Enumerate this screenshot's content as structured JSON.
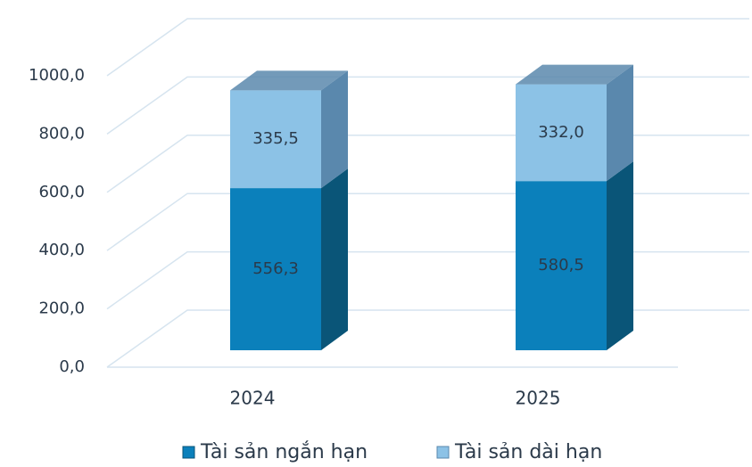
{
  "chart_data": {
    "type": "bar3d_stacked",
    "categories": [
      "2024",
      "2025"
    ],
    "series": [
      {
        "name": "Tài sản ngắn hạn",
        "color": "#0b80bb",
        "side": "#0a5578",
        "values": [
          556.3,
          580.5
        ],
        "value_labels": [
          "556,3",
          "580,5"
        ]
      },
      {
        "name": "Tài sản dài hạn",
        "color": "#8cc2e6",
        "side": "#5a88ad",
        "values": [
          335.5,
          332.0
        ],
        "value_labels": [
          "335,5",
          "332,0"
        ]
      }
    ],
    "ylim": [
      0,
      1000
    ],
    "yticks": [
      {
        "value": 0,
        "label": "0,0"
      },
      {
        "value": 200,
        "label": "200,0"
      },
      {
        "value": 400,
        "label": "400,0"
      },
      {
        "value": 600,
        "label": "600,0"
      },
      {
        "value": 800,
        "label": "800,0"
      },
      {
        "value": 1000,
        "label": "1000,0"
      }
    ],
    "grid": true,
    "legend": "bottom"
  }
}
